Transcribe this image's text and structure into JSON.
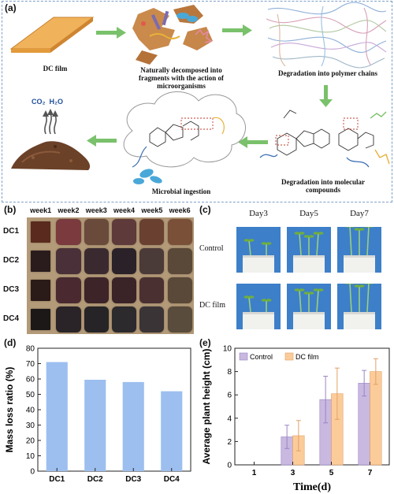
{
  "panel_a": {
    "label": "(a)",
    "captions": [
      "DC film",
      "Naturally decomposed into fragments with the action of microorganisms",
      "Degradation into polymer chains",
      "Degradation into molecular compounds",
      "Microbial ingestion"
    ],
    "co2": "CO₂",
    "h2o": "H₂O"
  },
  "panel_b": {
    "label": "(b)",
    "weeks": [
      "week1",
      "week2",
      "week3",
      "week4",
      "week5",
      "week6"
    ],
    "rows": [
      "DC1",
      "DC2",
      "DC3",
      "DC4"
    ],
    "sample_colors": [
      [
        "#5a2a1e",
        "#7a3a3e",
        "#6a4a3a",
        "#5e3a3a",
        "#6a4030",
        "#7a5038"
      ],
      [
        "#2a1c1c",
        "#4a3038",
        "#3a2a30",
        "#2a2228",
        "#4a3a38",
        "#5a4838"
      ],
      [
        "#2a1a18",
        "#4a2a30",
        "#3c2428",
        "#3a2428",
        "#4a3030",
        "#5a4838"
      ],
      [
        "#1c1818",
        "#2a2428",
        "#262426",
        "#2c2a2c",
        "#3a3436",
        "#5a4c3c"
      ]
    ],
    "soil_color": "#b39a78"
  },
  "panel_c": {
    "label": "(c)",
    "days": [
      "Day3",
      "Day5",
      "Day7"
    ],
    "groups": [
      "Control",
      "DC film"
    ],
    "backdrop_color": "#3d7fc9",
    "pot_color": "#f1f1ee",
    "seedling_counts": [
      [
        2,
        3,
        3
      ],
      [
        2,
        3,
        3
      ]
    ],
    "seedling_stages": [
      [
        1,
        2,
        3
      ],
      [
        1,
        2,
        3
      ]
    ]
  },
  "panel_d": {
    "label": "(d)"
  },
  "panel_e": {
    "label": "(e)"
  },
  "chart_data": [
    {
      "type": "bar",
      "categories": [
        "DC1",
        "DC2",
        "DC3",
        "DC4"
      ],
      "values": [
        71,
        59.5,
        58,
        52
      ],
      "ylabel": "Mass loss ratio (%)",
      "xlabel": "",
      "ylim": [
        0,
        80
      ],
      "yticks": [
        0,
        10,
        20,
        30,
        40,
        50,
        60,
        70,
        80
      ],
      "color": "#9dbfef",
      "grid": false
    },
    {
      "type": "bar",
      "categories": [
        "1",
        "3",
        "5",
        "7"
      ],
      "series": [
        {
          "name": "Control",
          "values": [
            0,
            2.4,
            5.6,
            7.0
          ],
          "errors": [
            0,
            1.0,
            2.0,
            1.1
          ],
          "color": "#c9b8e0",
          "edge": "#9a86c4"
        },
        {
          "name": "DC film",
          "values": [
            0,
            2.5,
            6.1,
            8.0
          ],
          "errors": [
            0,
            1.3,
            2.2,
            1.1
          ],
          "color": "#fbcc9a",
          "edge": "#e3a066"
        }
      ],
      "xlabel": "Time(d)",
      "ylabel": "Average plant height (cm)",
      "ylim": [
        0,
        10
      ],
      "yticks": [
        0,
        2,
        4,
        6,
        8,
        10
      ],
      "legend": "top-left",
      "grid": false
    }
  ]
}
